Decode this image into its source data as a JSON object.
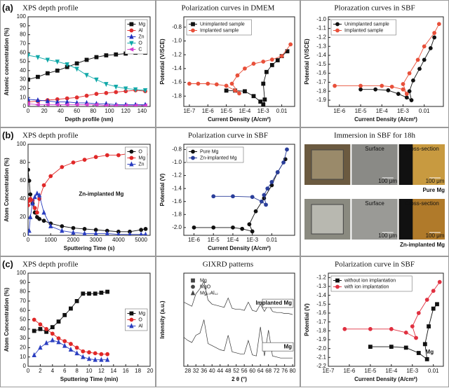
{
  "chart_data": [
    {
      "type": "line",
      "panel_label": "(a)",
      "title": "XPS depth profile",
      "xlabel": "Depth profile (nm)",
      "ylabel": "Atomic concentration (%)",
      "xlim": [
        0,
        150
      ],
      "xticks": [
        0,
        20,
        40,
        60,
        80,
        100,
        120,
        140
      ],
      "ylim": [
        0,
        100
      ],
      "yticks": [
        0,
        10,
        20,
        30,
        40,
        50,
        60,
        70,
        80,
        90,
        100
      ],
      "legend": "upper right",
      "x": [
        0,
        12,
        24,
        36,
        48,
        60,
        72,
        84,
        96,
        108,
        120,
        132,
        144
      ],
      "series": [
        {
          "name": "Mg",
          "color": "#111111",
          "marker": "square",
          "values": [
            30,
            33,
            37,
            40,
            44,
            48,
            52,
            55,
            57,
            58,
            59,
            60,
            60
          ]
        },
        {
          "name": "Al",
          "color": "#e03030",
          "marker": "circle",
          "values": [
            5,
            6,
            7,
            8,
            9,
            10,
            12,
            14,
            15,
            16,
            17,
            18,
            17
          ]
        },
        {
          "name": "Zn",
          "color": "#2030c0",
          "marker": "triangle",
          "values": [
            8,
            7,
            6,
            5,
            5,
            4,
            4,
            3,
            3,
            2,
            2,
            2,
            2
          ]
        },
        {
          "name": "O",
          "color": "#10a8a8",
          "marker": "triangle-down",
          "values": [
            57,
            55,
            52,
            50,
            47,
            42,
            35,
            30,
            25,
            22,
            20,
            19,
            18
          ]
        },
        {
          "name": "C",
          "color": "#d040d0",
          "marker": "triangle-left",
          "values": [
            3,
            2,
            2,
            2,
            2,
            2,
            2,
            2,
            1,
            1,
            1,
            1,
            1
          ]
        }
      ]
    },
    {
      "type": "line",
      "title": "Polarization curves in DMEM",
      "xlabel": "Current Density (A/cm²)",
      "ylabel": "Potential (V/SCE)",
      "xlog": true,
      "xlim": [
        5e-08,
        0.05
      ],
      "xticks": [
        {
          "value": 1e-07,
          "label": "1E-7"
        },
        {
          "value": 1e-06,
          "label": "1E-6"
        },
        {
          "value": 1e-05,
          "label": "1E-5"
        },
        {
          "value": 0.0001,
          "label": "1E-4"
        },
        {
          "value": 0.001,
          "label": "1E-3"
        },
        0.01
      ],
      "ylim": [
        -1.95,
        -0.65
      ],
      "yticks": [
        -0.8,
        {
          "value": -1,
          "label": "-1.0"
        },
        -1.2,
        -1.4,
        -1.6,
        -1.8
      ],
      "legend": "upper left",
      "series": [
        {
          "name": "Unimplanted sample",
          "color": "#111111",
          "marker": "square",
          "x": [
            1e-05,
            3e-05,
            0.0001,
            0.0003,
            0.0007,
            0.001,
            0.0012,
            0.001,
            0.0015,
            0.003,
            0.006,
            0.01,
            0.02
          ],
          "values": [
            -1.72,
            -1.72,
            -1.73,
            -1.8,
            -1.88,
            -1.92,
            -1.85,
            -1.62,
            -1.45,
            -1.35,
            -1.28,
            -1.22,
            -1.15
          ]
        },
        {
          "name": "Implanted sample",
          "color": "#e8503a",
          "marker": "circle",
          "x": [
            1e-07,
            3e-07,
            1e-06,
            3e-06,
            1e-05,
            3e-05,
            5e-05,
            2e-05,
            4e-05,
            0.0001,
            0.0003,
            0.001,
            0.003,
            0.01,
            0.03
          ],
          "values": [
            -1.62,
            -1.62,
            -1.62,
            -1.63,
            -1.65,
            -1.72,
            -1.76,
            -1.62,
            -1.5,
            -1.4,
            -1.33,
            -1.3,
            -1.27,
            -1.22,
            -1.05
          ]
        }
      ]
    },
    {
      "type": "line",
      "title": "Plorazation curves in SBF",
      "xlabel": "Current Density (A/cm²)",
      "ylabel": "Potential (V/SCE)",
      "xlog": true,
      "xlim": [
        3e-07,
        0.08
      ],
      "xticks": [
        {
          "value": 1e-06,
          "label": "1E-6"
        },
        {
          "value": 1e-05,
          "label": "1E-5"
        },
        {
          "value": 0.0001,
          "label": "1E-4"
        },
        {
          "value": 0.001,
          "label": "1E-3"
        },
        0.01
      ],
      "ylim": [
        -1.97,
        -0.97
      ],
      "yticks": [
        {
          "value": -1,
          "label": "-1.0"
        },
        -1.1,
        -1.2,
        -1.3,
        -1.4,
        -1.5,
        -1.6,
        -1.7,
        -1.8,
        -1.9
      ],
      "legend": "upper left",
      "series": [
        {
          "name": "Unimplanted sample",
          "color": "#111111",
          "marker": "circle",
          "x": [
            1e-05,
            5e-05,
            0.0002,
            0.0006,
            0.0015,
            0.0025,
            0.002,
            0.003,
            0.006,
            0.01,
            0.02,
            0.03
          ],
          "values": [
            -1.78,
            -1.78,
            -1.79,
            -1.83,
            -1.87,
            -1.9,
            -1.8,
            -1.68,
            -1.55,
            -1.45,
            -1.32,
            -1.2
          ]
        },
        {
          "name": "Implanted sample",
          "color": "#e8503a",
          "marker": "circle",
          "x": [
            6e-07,
            1e-05,
            0.0001,
            0.0003,
            0.001,
            0.0015,
            0.001,
            0.002,
            0.005,
            0.01,
            0.03,
            0.05
          ],
          "values": [
            -1.74,
            -1.74,
            -1.74,
            -1.75,
            -1.78,
            -1.83,
            -1.72,
            -1.6,
            -1.45,
            -1.3,
            -1.15,
            -1.05
          ]
        }
      ]
    },
    {
      "type": "line",
      "panel_label": "(b)",
      "title": "XPS depth profile",
      "xlabel": "Sputtering Time (s)",
      "ylabel": "Atom Concentration (%)",
      "annotation": "Zn-implanted Mg",
      "xlim": [
        0,
        5400
      ],
      "xticks": [
        0,
        1000,
        2000,
        3000,
        4000,
        5000
      ],
      "ylim": [
        0,
        100
      ],
      "yticks": [
        0,
        20,
        40,
        60,
        80,
        100
      ],
      "legend": "upper right",
      "x": [
        0,
        50,
        100,
        200,
        300,
        400,
        500,
        700,
        1000,
        1500,
        2000,
        2500,
        3000,
        3500,
        4000,
        4500,
        5000,
        5200
      ],
      "series": [
        {
          "name": "O",
          "color": "#111111",
          "marker": "circle",
          "values": [
            72,
            60,
            45,
            35,
            25,
            20,
            18,
            16,
            13,
            10,
            8,
            7,
            6,
            5,
            4,
            4,
            6,
            7
          ]
        },
        {
          "name": "Mg",
          "color": "#e02828",
          "marker": "circle",
          "values": [
            33,
            38,
            40,
            38,
            30,
            25,
            40,
            55,
            65,
            75,
            80,
            83,
            86,
            88,
            88,
            90,
            90,
            89
          ]
        },
        {
          "name": "Zn",
          "color": "#2a3ec0",
          "marker": "triangle",
          "values": [
            0,
            5,
            20,
            35,
            42,
            46,
            44,
            25,
            10,
            5,
            3,
            2,
            2,
            2,
            1,
            1,
            1,
            1
          ]
        }
      ]
    },
    {
      "type": "line",
      "title": "Polarization curve in SBF",
      "xlabel": "Current Density (A/cm²)",
      "ylabel": "Potential (V)",
      "xlog": true,
      "xlim": [
        3e-07,
        0.15
      ],
      "xticks": [
        {
          "value": 1e-06,
          "label": "1E-6"
        },
        {
          "value": 1e-05,
          "label": "1E-5"
        },
        {
          "value": 0.0001,
          "label": "1E-4"
        },
        {
          "value": 0.001,
          "label": "1E-3"
        },
        0.01
      ],
      "ylim": [
        -2.12,
        -0.72
      ],
      "yticks": [
        -0.8,
        {
          "value": -1,
          "label": "-1.0"
        },
        -1.2,
        -1.4,
        -1.6,
        -1.8,
        {
          "value": -2,
          "label": "-2.0"
        }
      ],
      "legend": "upper left",
      "series": [
        {
          "name": "Pure Mg",
          "color": "#111111",
          "marker": "circle",
          "x": [
            1e-06,
            1e-05,
            0.0001,
            0.0003,
            0.001,
            0.0007,
            0.0015,
            0.004,
            0.01,
            0.02,
            0.05
          ],
          "values": [
            -2,
            -2,
            -2,
            -2.02,
            -2.06,
            -1.95,
            -1.75,
            -1.55,
            -1.35,
            -1.15,
            -0.95
          ]
        },
        {
          "name": "Zn-implanted Mg",
          "color": "#2a3e9a",
          "marker": "circle",
          "x": [
            1e-05,
            0.0001,
            0.001,
            0.003,
            0.005,
            0.004,
            0.006,
            0.01,
            0.02,
            0.04,
            0.06
          ],
          "values": [
            -1.52,
            -1.52,
            -1.53,
            -1.6,
            -1.65,
            -1.5,
            -1.4,
            -1.3,
            -1.15,
            -1,
            -0.8
          ]
        }
      ]
    },
    {
      "type": "image",
      "title": "Immersion in SBF for 18h",
      "rows": [
        {
          "caption": "Pure Mg",
          "labels": [
            "Surface",
            "Cross-section"
          ],
          "scale_bars": [
            "100 μm",
            "100 μm"
          ]
        },
        {
          "caption": "Zn-implanted Mg",
          "labels": [
            "Surface",
            "Cross-section"
          ],
          "scale_bars": [
            "100 μm",
            "100 μm"
          ]
        }
      ]
    },
    {
      "type": "line",
      "panel_label": "(c)",
      "title": "XPS depth profile",
      "xlabel": "Sputtering Time (min)",
      "ylabel": "Atom Concentration (%)",
      "xlim": [
        0,
        20
      ],
      "xticks": [
        0,
        2,
        4,
        6,
        8,
        10,
        12,
        14,
        16,
        18,
        20
      ],
      "ylim": [
        0,
        100
      ],
      "yticks": [
        0,
        10,
        20,
        30,
        40,
        50,
        60,
        70,
        80,
        90,
        100
      ],
      "legend": "center right",
      "x": [
        1,
        2,
        3,
        4,
        5,
        6,
        7,
        8,
        9,
        10,
        11,
        12,
        13
      ],
      "series": [
        {
          "name": "Mg",
          "color": "#111111",
          "marker": "square",
          "values": [
            38,
            40,
            37,
            42,
            48,
            55,
            62,
            70,
            78,
            78,
            78,
            79,
            80
          ]
        },
        {
          "name": "O",
          "color": "#e02828",
          "marker": "circle",
          "values": [
            50,
            45,
            40,
            35,
            30,
            27,
            24,
            20,
            16,
            15,
            14,
            13,
            13
          ]
        },
        {
          "name": "Al",
          "color": "#2a3ec0",
          "marker": "triangle",
          "values": [
            12,
            20,
            25,
            28,
            26,
            22,
            18,
            14,
            10,
            8,
            7,
            7,
            7
          ]
        }
      ]
    },
    {
      "type": "line",
      "title": "GIXRD patterns",
      "xlabel": "2 θ (°)",
      "ylabel": "Intensity (a.u.)",
      "xlim": [
        26,
        81
      ],
      "xticks": [
        28,
        32,
        36,
        40,
        44,
        48,
        52,
        56,
        60,
        64,
        68,
        72,
        76,
        80
      ],
      "ylim": [
        10,
        100
      ],
      "legend": "upper left",
      "phases": [
        {
          "name": "Mg",
          "marker": "square"
        },
        {
          "name": "MgO",
          "marker": "circle"
        },
        {
          "name": "Mg₁₇Al₁₂",
          "marker": "triangle"
        }
      ],
      "x": [
        26,
        28,
        30,
        32,
        34,
        36,
        38,
        40,
        42,
        44,
        46,
        48,
        50,
        52,
        54,
        56,
        58,
        60,
        62,
        64,
        66,
        68,
        70,
        72,
        74,
        76,
        78,
        80
      ],
      "series": [
        {
          "name": "Implanted Mg",
          "color": "#333333",
          "values": [
            72,
            70,
            68,
            80,
            85,
            92,
            74,
            70,
            69,
            68,
            67,
            76,
            66,
            65,
            65,
            64,
            72,
            64,
            63,
            70,
            63,
            70,
            63,
            62,
            62,
            61,
            61,
            60
          ]
        },
        {
          "name": "Mg",
          "color": "#333333",
          "values": [
            38,
            35,
            33,
            40,
            42,
            55,
            32,
            30,
            28,
            26,
            25,
            40,
            24,
            23,
            22,
            22,
            35,
            21,
            20,
            48,
            20,
            45,
            20,
            19,
            18,
            18,
            18,
            18
          ]
        }
      ]
    },
    {
      "type": "line",
      "title": "Polarization curve in SBF",
      "xlabel": "Current Density (A/cm²)",
      "ylabel": "Potential (V)",
      "xlog": true,
      "annotation": "Mg",
      "xlim": [
        1e-07,
        0.03
      ],
      "xticks": [
        {
          "value": 1e-07,
          "label": "1E-7"
        },
        {
          "value": 1e-06,
          "label": "1E-6"
        },
        {
          "value": 1e-05,
          "label": "1E-5"
        },
        {
          "value": 0.0001,
          "label": "1E-4"
        },
        {
          "value": 0.001,
          "label": "1E-3"
        },
        0.01
      ],
      "ylim": [
        -2.2,
        -1.15
      ],
      "yticks": [
        -1.2,
        -1.3,
        -1.4,
        -1.5,
        -1.6,
        -1.7,
        -1.8,
        -1.9,
        {
          "value": -2,
          "label": "-2.0"
        },
        -2.1,
        -2.2
      ],
      "legend": "upper left",
      "series": [
        {
          "name": "without ion implantation",
          "color": "#111111",
          "marker": "square",
          "x": [
            1e-05,
            0.0001,
            0.0005,
            0.002,
            0.005,
            0.004,
            0.006,
            0.01,
            0.015
          ],
          "values": [
            -1.98,
            -1.98,
            -1.99,
            -2.05,
            -2.12,
            -1.95,
            -1.75,
            -1.55,
            -1.5
          ]
        },
        {
          "name": "with ion implantation",
          "color": "#e03040",
          "marker": "circle",
          "x": [
            6e-07,
            1e-05,
            0.0001,
            0.0005,
            0.0015,
            0.001,
            0.002,
            0.005,
            0.01,
            0.02
          ],
          "values": [
            -1.78,
            -1.78,
            -1.78,
            -1.82,
            -1.88,
            -1.75,
            -1.6,
            -1.45,
            -1.35,
            -1.25
          ]
        }
      ]
    }
  ]
}
